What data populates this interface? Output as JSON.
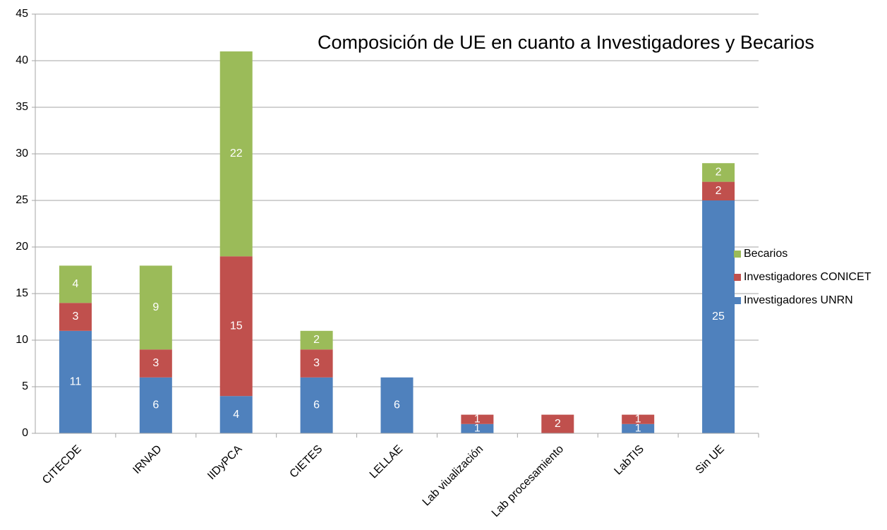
{
  "chart_data": {
    "type": "stacked_bar",
    "title": "Composición de UE en cuanto a Investigadores y Becarios",
    "categories": [
      "CITECDE",
      "IRNAD",
      "IIDyPCA",
      "CIETES",
      "LELLAE",
      "Lab viualización",
      "Lab procesamiento",
      "LabTIS",
      "Sin UE"
    ],
    "series": [
      {
        "name": "Investigadores UNRN",
        "color": "#4f81bd",
        "values": [
          11,
          6,
          4,
          6,
          6,
          1,
          null,
          1,
          25
        ]
      },
      {
        "name": "Investigadores CONICET",
        "color": "#c0504d",
        "values": [
          3,
          3,
          15,
          3,
          null,
          1,
          2,
          1,
          2
        ]
      },
      {
        "name": "Becarios",
        "color": "#9bbb59",
        "values": [
          4,
          9,
          22,
          2,
          null,
          null,
          null,
          null,
          2
        ]
      }
    ],
    "ylim": [
      0,
      45
    ],
    "yticks": [
      0,
      5,
      10,
      15,
      20,
      25,
      30,
      35,
      40,
      45
    ],
    "grid": true,
    "legend": "right"
  }
}
